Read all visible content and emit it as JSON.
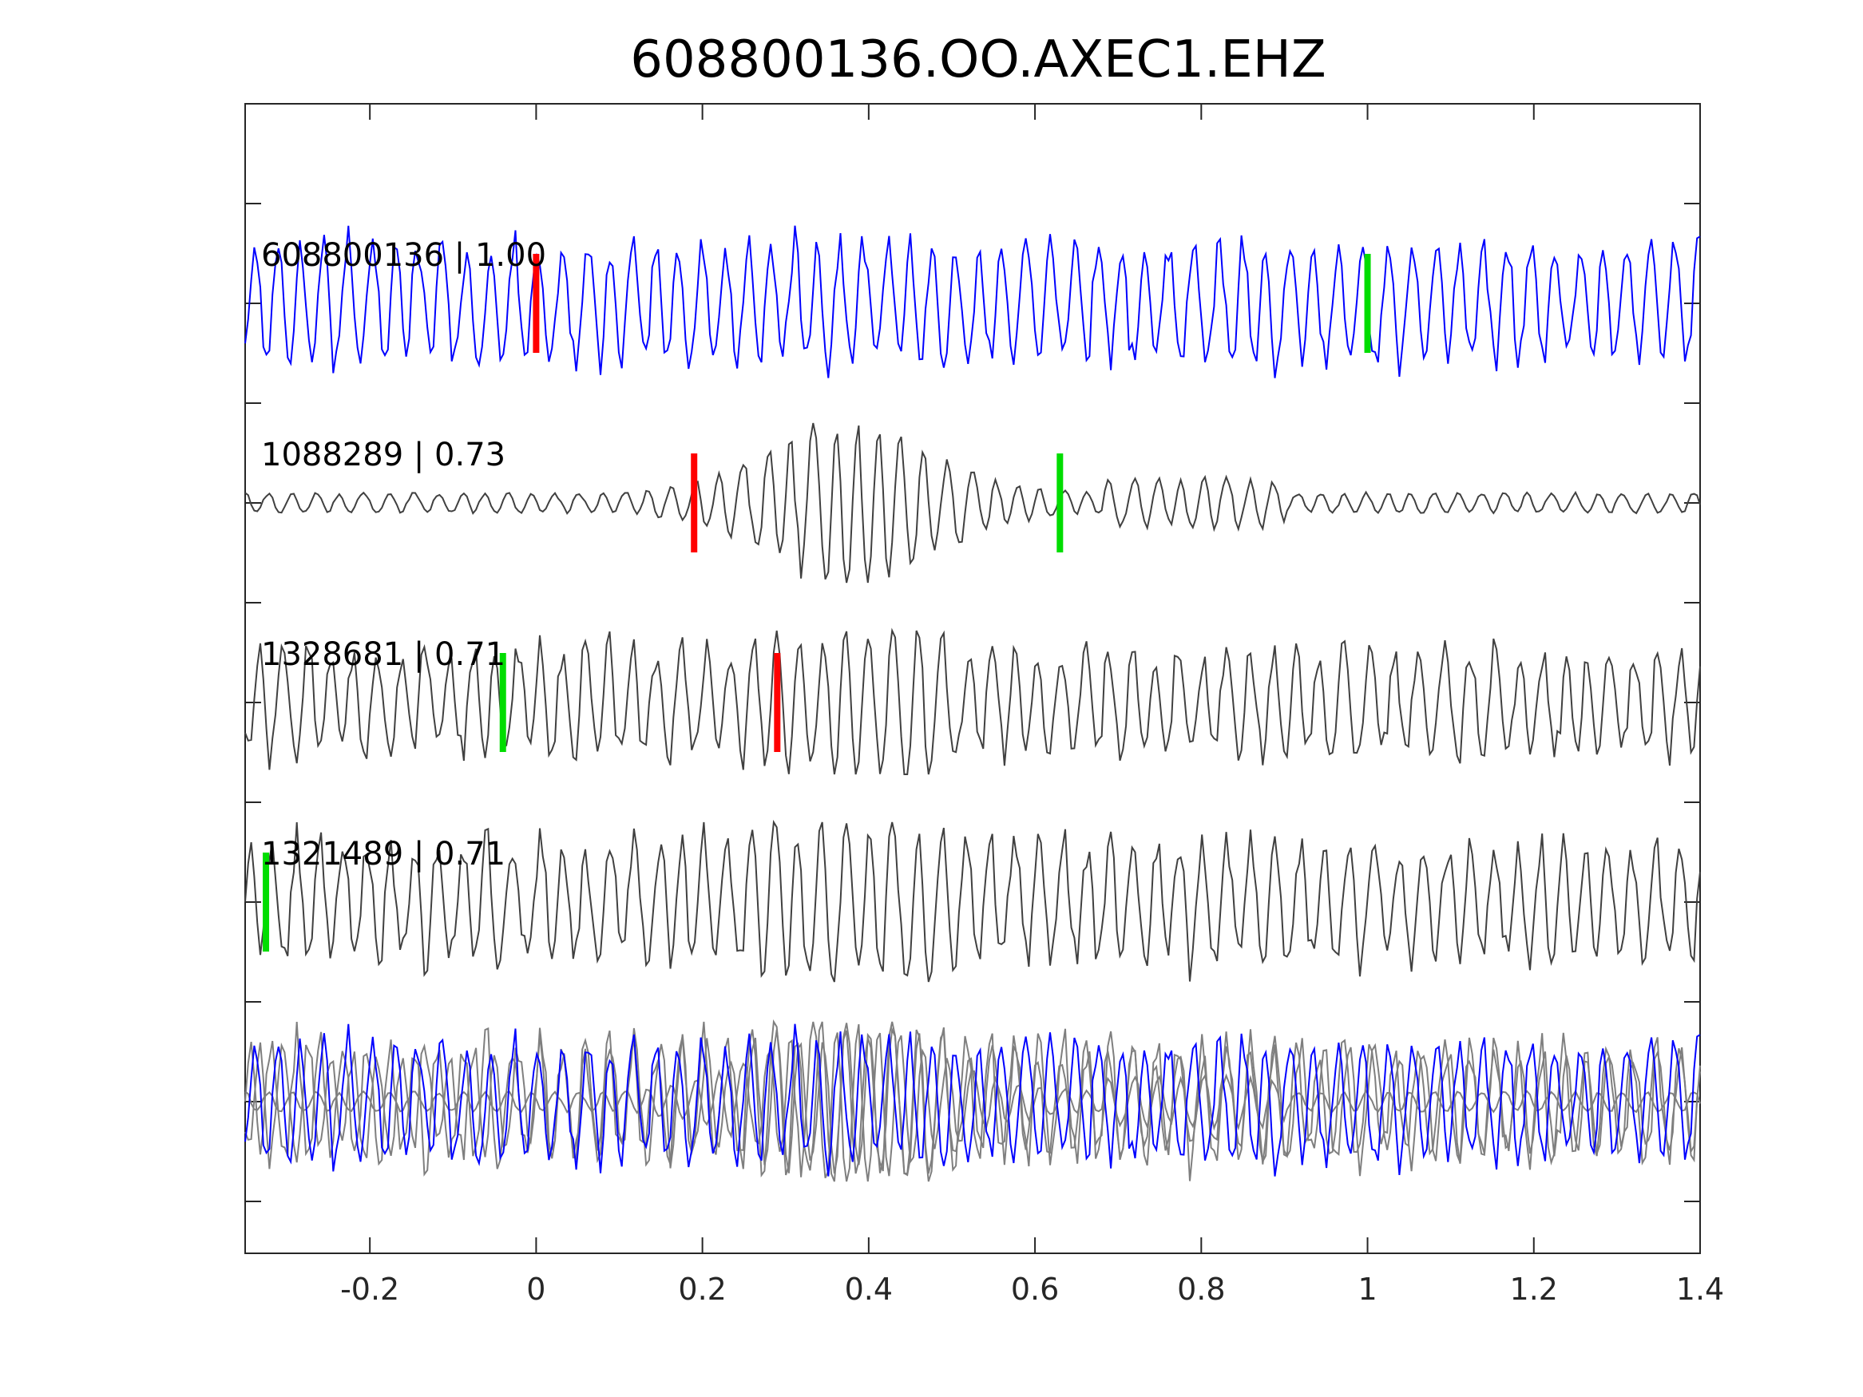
{
  "chart_data": {
    "type": "line",
    "title": "608800136.OO.AXEC1.EHZ",
    "xlabel": "",
    "ylabel": "",
    "xlim": [
      -0.35,
      1.4
    ],
    "x_ticks": [
      -0.2,
      0,
      0.2,
      0.4,
      0.6,
      0.8,
      1,
      1.2,
      1.4
    ],
    "x_tick_labels": [
      "-0.2",
      "0",
      "0.2",
      "0.4",
      "0.6",
      "0.8",
      "1",
      "1.2",
      "1.4"
    ],
    "y_tick_labels_shown": false,
    "grid": false,
    "legend": "none",
    "traces": [
      {
        "label": "608800136 | 1.00",
        "color": "#0000ff",
        "red_pick_x": 0.0,
        "green_pick_x": 1.0,
        "pattern": "noisy",
        "amplitude": 1.0
      },
      {
        "label": "1088289 | 0.73",
        "color": "#404040",
        "red_pick_x": 0.19,
        "green_pick_x": 0.63,
        "pattern": "burst",
        "amplitude": 1.0
      },
      {
        "label": "1328681 | 0.71",
        "color": "#404040",
        "red_pick_x": 0.29,
        "green_pick_x": -0.04,
        "pattern": "steady",
        "amplitude": 0.9
      },
      {
        "label": "1321489 | 0.71",
        "color": "#404040",
        "red_pick_x": null,
        "green_pick_x": -0.325,
        "pattern": "steady",
        "amplitude": 1.0
      }
    ],
    "overlay": {
      "description_series": [
        "608800136 | 1.00",
        "1088289 | 0.73",
        "1328681 | 0.71",
        "1321489 | 0.71"
      ],
      "primary_color": "#0000ff",
      "secondary_color": "#7f7f7f"
    },
    "colors": {
      "primary_trace": "#0000ff",
      "reference_traces": "#404040",
      "overlay_traces": "#7f7f7f",
      "red_pick": "#ff0000",
      "green_pick": "#00dd00",
      "axis": "#262626"
    }
  }
}
